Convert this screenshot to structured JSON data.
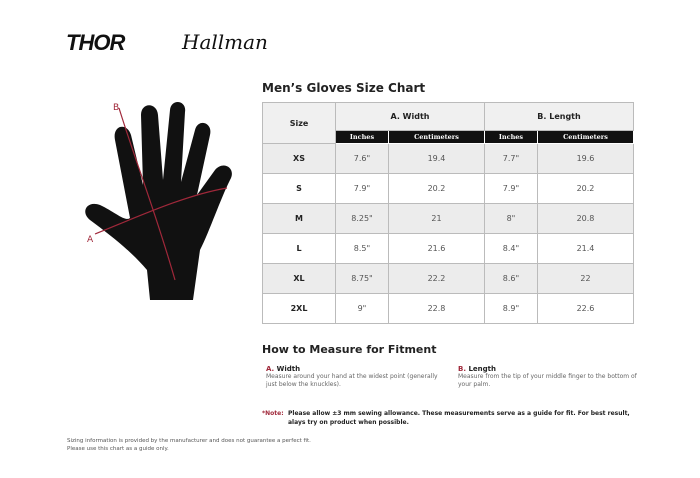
{
  "brands": [
    "THOR",
    "Hallman"
  ],
  "title": "Men’s Gloves Size Chart",
  "table": {
    "size_header": "Size",
    "groups": [
      "A. Width",
      "B. Length"
    ],
    "units": [
      "Inches",
      "Centimeters",
      "Inches",
      "Centimeters"
    ],
    "rows": [
      [
        "XS",
        "7.6\"",
        "19.4",
        "7.7\"",
        "19.6"
      ],
      [
        "S",
        "7.9\"",
        "20.2",
        "7.9\"",
        "20.2"
      ],
      [
        "M",
        "8.25\"",
        "21",
        "8\"",
        "20.8"
      ],
      [
        "L",
        "8.5\"",
        "21.6",
        "8.4\"",
        "21.4"
      ],
      [
        "XL",
        "8.75\"",
        "22.2",
        "8.6\"",
        "22"
      ],
      [
        "2XL",
        "9\"",
        "22.8",
        "8.9\"",
        "22.6"
      ]
    ]
  },
  "diagram": {
    "label_a": "A",
    "label_b": "B"
  },
  "measure": {
    "title": "How to Measure for Fitment",
    "a": {
      "letter": "A.",
      "label": "Width",
      "text": "Measure around your hand at the widest point (generally just below the knuckles)."
    },
    "b": {
      "letter": "B.",
      "label": "Length",
      "text": "Measure from the tip of your middle finger to the bottom of your palm."
    }
  },
  "note": {
    "label": "*Note:",
    "text": "Please allow ±3 mm sewing allowance. These measurements serve as a guide for fit. For best result, alays try on product when possible."
  },
  "footer": [
    "Sizing information is provided by the manufacturer and does not guarantee a perfect fit.",
    "Please use this chart as a guide only."
  ],
  "colors": {
    "accent": "#a0283a"
  }
}
